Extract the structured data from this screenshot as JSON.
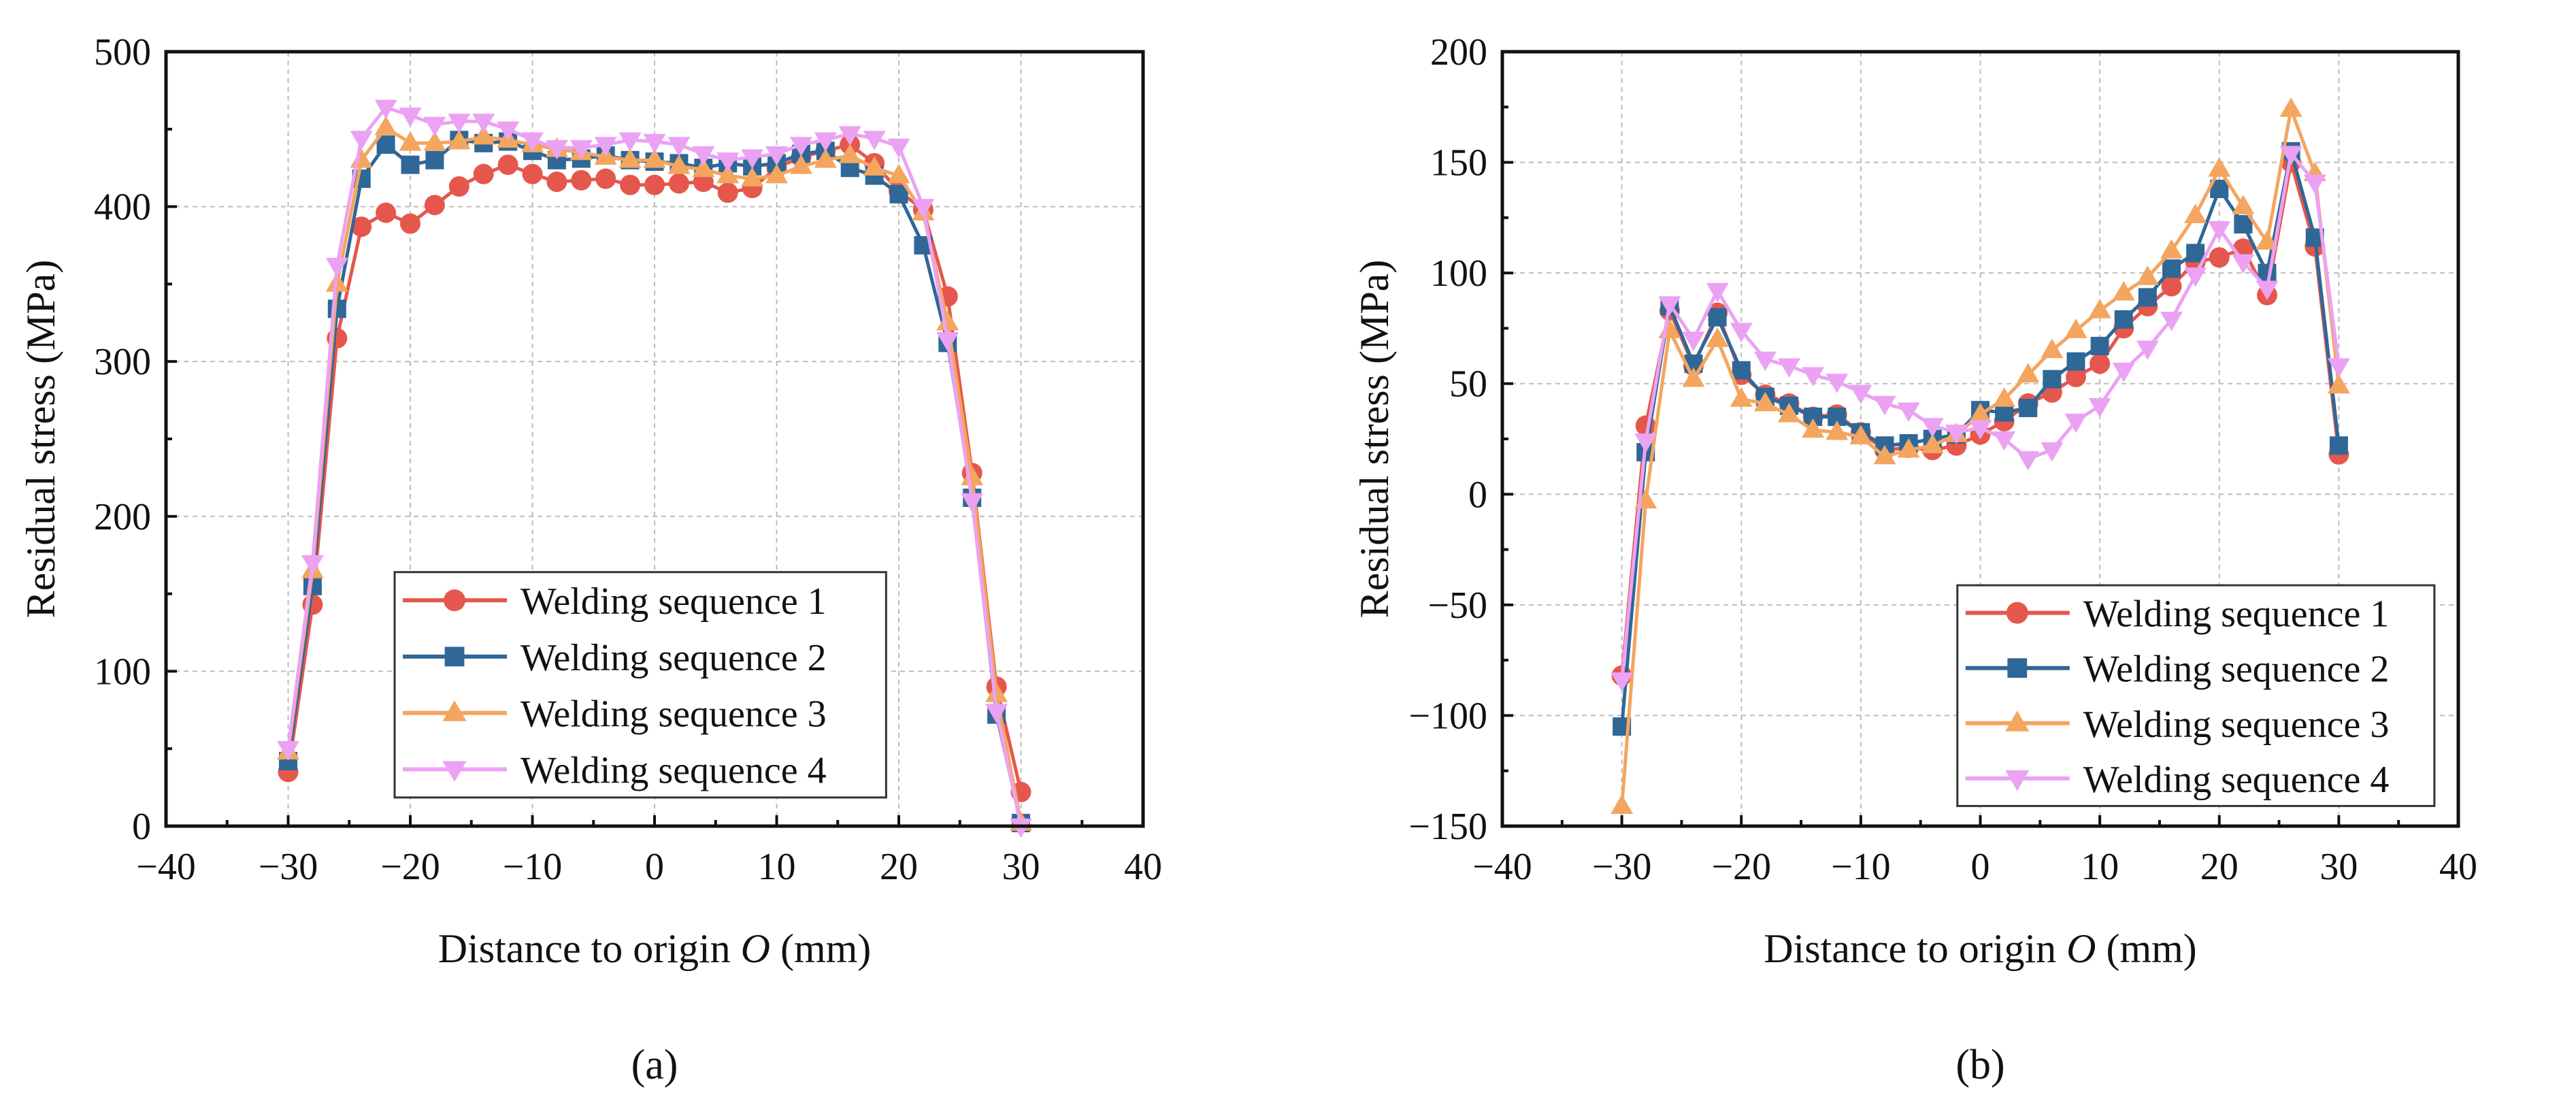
{
  "colors": {
    "s1": "#e5574c",
    "s2": "#2f6797",
    "s3": "#f4a55e",
    "s4": "#eba2f3"
  },
  "chart_data": [
    {
      "type": "line",
      "panel_label": "(a)",
      "xlabel": "Distance to origin O (mm)",
      "ylabel": "Residual stress (MPa)",
      "xlim": [
        -40,
        40
      ],
      "ylim": [
        0,
        500
      ],
      "xticks": [
        -40,
        -30,
        -20,
        -10,
        0,
        10,
        20,
        30,
        40
      ],
      "yticks": [
        0,
        100,
        200,
        300,
        400,
        500
      ],
      "grid": true,
      "legend_position": "bottom-center",
      "x": [
        -30,
        -28,
        -26,
        -24,
        -22,
        -20,
        -18,
        -16,
        -14,
        -12,
        -10,
        -8,
        -6,
        -4,
        -2,
        0,
        2,
        4,
        6,
        8,
        10,
        12,
        14,
        16,
        18,
        20,
        22,
        24,
        26,
        28,
        30
      ],
      "series": [
        {
          "name": "Welding sequence 1",
          "marker": "circle",
          "values": [
            35,
            143,
            315,
            387,
            396,
            389,
            401,
            413,
            421,
            427,
            421,
            416,
            417,
            418,
            414,
            414,
            415,
            416,
            409,
            412,
            425,
            432,
            436,
            440,
            428,
            410,
            398,
            342,
            228,
            90,
            22
          ]
        },
        {
          "name": "Welding sequence 2",
          "marker": "square",
          "values": [
            42,
            155,
            334,
            418,
            440,
            427,
            430,
            443,
            441,
            442,
            436,
            430,
            431,
            433,
            430,
            429,
            428,
            425,
            428,
            426,
            428,
            434,
            436,
            425,
            420,
            408,
            375,
            312,
            212,
            72,
            2
          ]
        },
        {
          "name": "Welding sequence 3",
          "marker": "triangle-up",
          "values": [
            48,
            165,
            350,
            430,
            451,
            441,
            441,
            442,
            445,
            443,
            440,
            437,
            435,
            432,
            430,
            430,
            426,
            424,
            420,
            418,
            420,
            426,
            430,
            433,
            425,
            420,
            396,
            325,
            225,
            85,
            2
          ]
        },
        {
          "name": "Welding sequence 4",
          "marker": "triangle-down",
          "values": [
            50,
            170,
            362,
            444,
            464,
            459,
            453,
            455,
            455,
            450,
            443,
            438,
            438,
            440,
            443,
            442,
            440,
            434,
            430,
            432,
            434,
            440,
            443,
            447,
            444,
            439,
            400,
            314,
            210,
            74,
            0
          ]
        }
      ]
    },
    {
      "type": "line",
      "panel_label": "(b)",
      "xlabel": "Distance to origin O (mm)",
      "ylabel": "Residual stress (MPa)",
      "xlim": [
        -40,
        40
      ],
      "ylim": [
        -150,
        200
      ],
      "xticks": [
        -40,
        -30,
        -20,
        -10,
        0,
        10,
        20,
        30,
        40
      ],
      "yticks": [
        -150,
        -100,
        -50,
        0,
        50,
        100,
        150,
        200
      ],
      "grid": true,
      "legend_position": "bottom-right",
      "x": [
        -30,
        -28,
        -26,
        -24,
        -22,
        -20,
        -18,
        -16,
        -14,
        -12,
        -10,
        -8,
        -6,
        -4,
        -2,
        0,
        2,
        4,
        6,
        8,
        10,
        12,
        14,
        16,
        18,
        20,
        22,
        24,
        26,
        28,
        30
      ],
      "series": [
        {
          "name": "Welding sequence 1",
          "marker": "circle",
          "values": [
            -82,
            31,
            83,
            58,
            82,
            54,
            45,
            41,
            35,
            36,
            28,
            20,
            21,
            20,
            22,
            27,
            33,
            41,
            46,
            53,
            59,
            75,
            85,
            94,
            105,
            107,
            111,
            90,
            150,
            112,
            18
          ]
        },
        {
          "name": "Welding sequence 2",
          "marker": "square",
          "values": [
            -105,
            19,
            85,
            59,
            80,
            56,
            44,
            40,
            35,
            35,
            28,
            22,
            23,
            25,
            27,
            38,
            37,
            39,
            52,
            60,
            67,
            79,
            89,
            102,
            109,
            138,
            122,
            100,
            155,
            116,
            22
          ]
        },
        {
          "name": "Welding sequence 3",
          "marker": "triangle-up",
          "values": [
            -141,
            -3,
            74,
            52,
            70,
            43,
            41,
            36,
            29,
            28,
            26,
            17,
            20,
            22,
            27,
            36,
            43,
            54,
            65,
            74,
            83,
            91,
            98,
            110,
            126,
            147,
            130,
            114,
            174,
            145,
            49
          ]
        },
        {
          "name": "Welding sequence 4",
          "marker": "triangle-down",
          "values": [
            -84,
            24,
            86,
            70,
            92,
            74,
            61,
            58,
            54,
            51,
            46,
            41,
            38,
            31,
            28,
            30,
            25,
            16,
            20,
            33,
            40,
            56,
            66,
            79,
            99,
            120,
            105,
            93,
            154,
            141,
            58
          ]
        }
      ]
    }
  ]
}
